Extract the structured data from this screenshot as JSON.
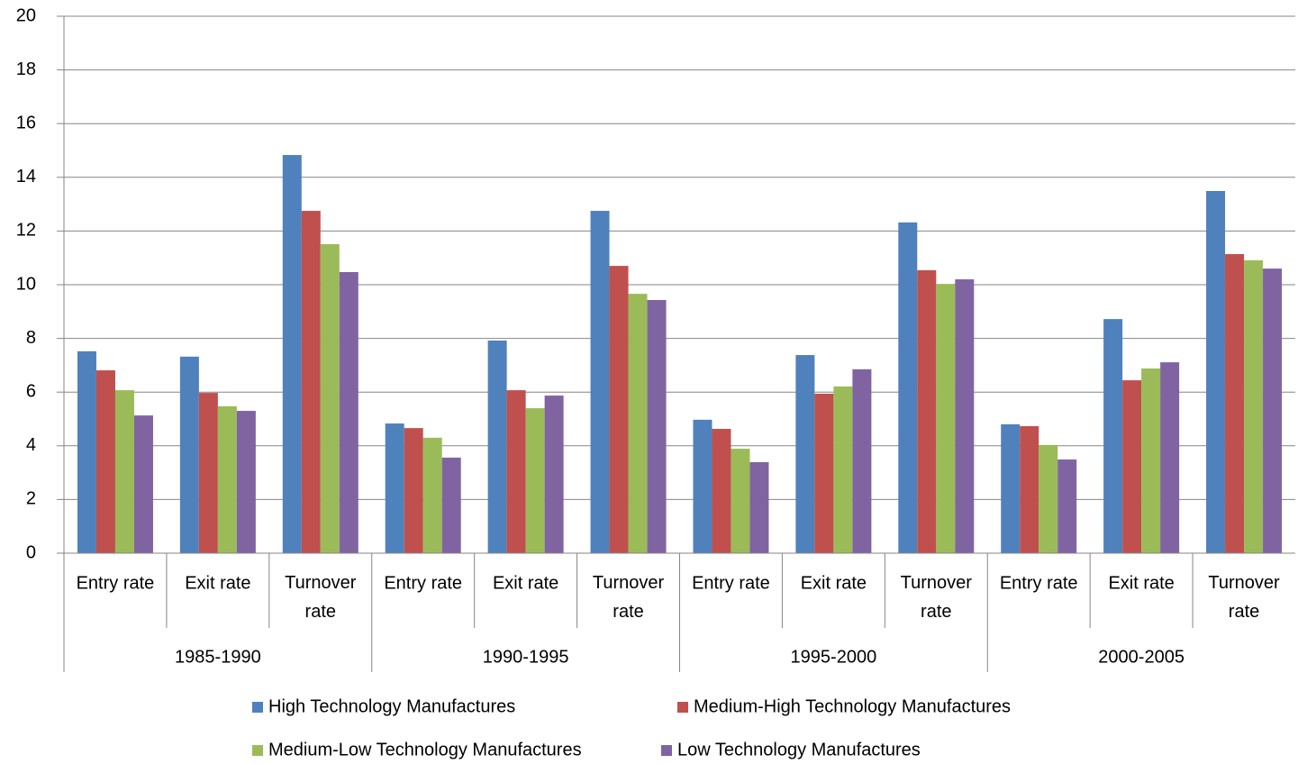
{
  "chart_data": {
    "type": "bar",
    "categories": [
      "Entry rate",
      "Exit rate",
      "Turnover rate",
      "Entry rate",
      "Exit rate",
      "Turnover rate",
      "Entry rate",
      "Exit rate",
      "Turnover rate",
      "Entry rate",
      "Exit rate",
      "Turnover rate"
    ],
    "category_groups": [
      "1985-1990",
      "1990-1995",
      "1995-2000",
      "2000-2005"
    ],
    "series": [
      {
        "name": "High Technology Manufactures",
        "color": "#4f81bd",
        "values": [
          7.52,
          7.32,
          14.83,
          4.83,
          7.92,
          12.75,
          4.97,
          7.38,
          12.32,
          4.8,
          8.72,
          13.49
        ]
      },
      {
        "name": "Medium-High Technology Manufactures",
        "color": "#c0504d",
        "values": [
          6.81,
          5.97,
          12.75,
          4.66,
          6.07,
          10.7,
          4.63,
          5.94,
          10.54,
          4.73,
          6.44,
          11.14
        ]
      },
      {
        "name": "Medium-Low Technology Manufactures",
        "color": "#9bbb59",
        "values": [
          6.07,
          5.47,
          11.51,
          4.3,
          5.4,
          9.66,
          3.89,
          6.21,
          10.03,
          4.03,
          6.88,
          10.91
        ]
      },
      {
        "name": "Low Technology Manufactures",
        "color": "#8064a2",
        "values": [
          5.13,
          5.3,
          10.47,
          3.56,
          5.87,
          9.43,
          3.39,
          6.85,
          10.2,
          3.49,
          7.11,
          10.6
        ]
      }
    ],
    "ylim": [
      0,
      20
    ],
    "yticks": [
      0,
      2,
      4,
      6,
      8,
      10,
      12,
      14,
      16,
      18,
      20
    ],
    "grid": true,
    "legend": "bottom"
  }
}
